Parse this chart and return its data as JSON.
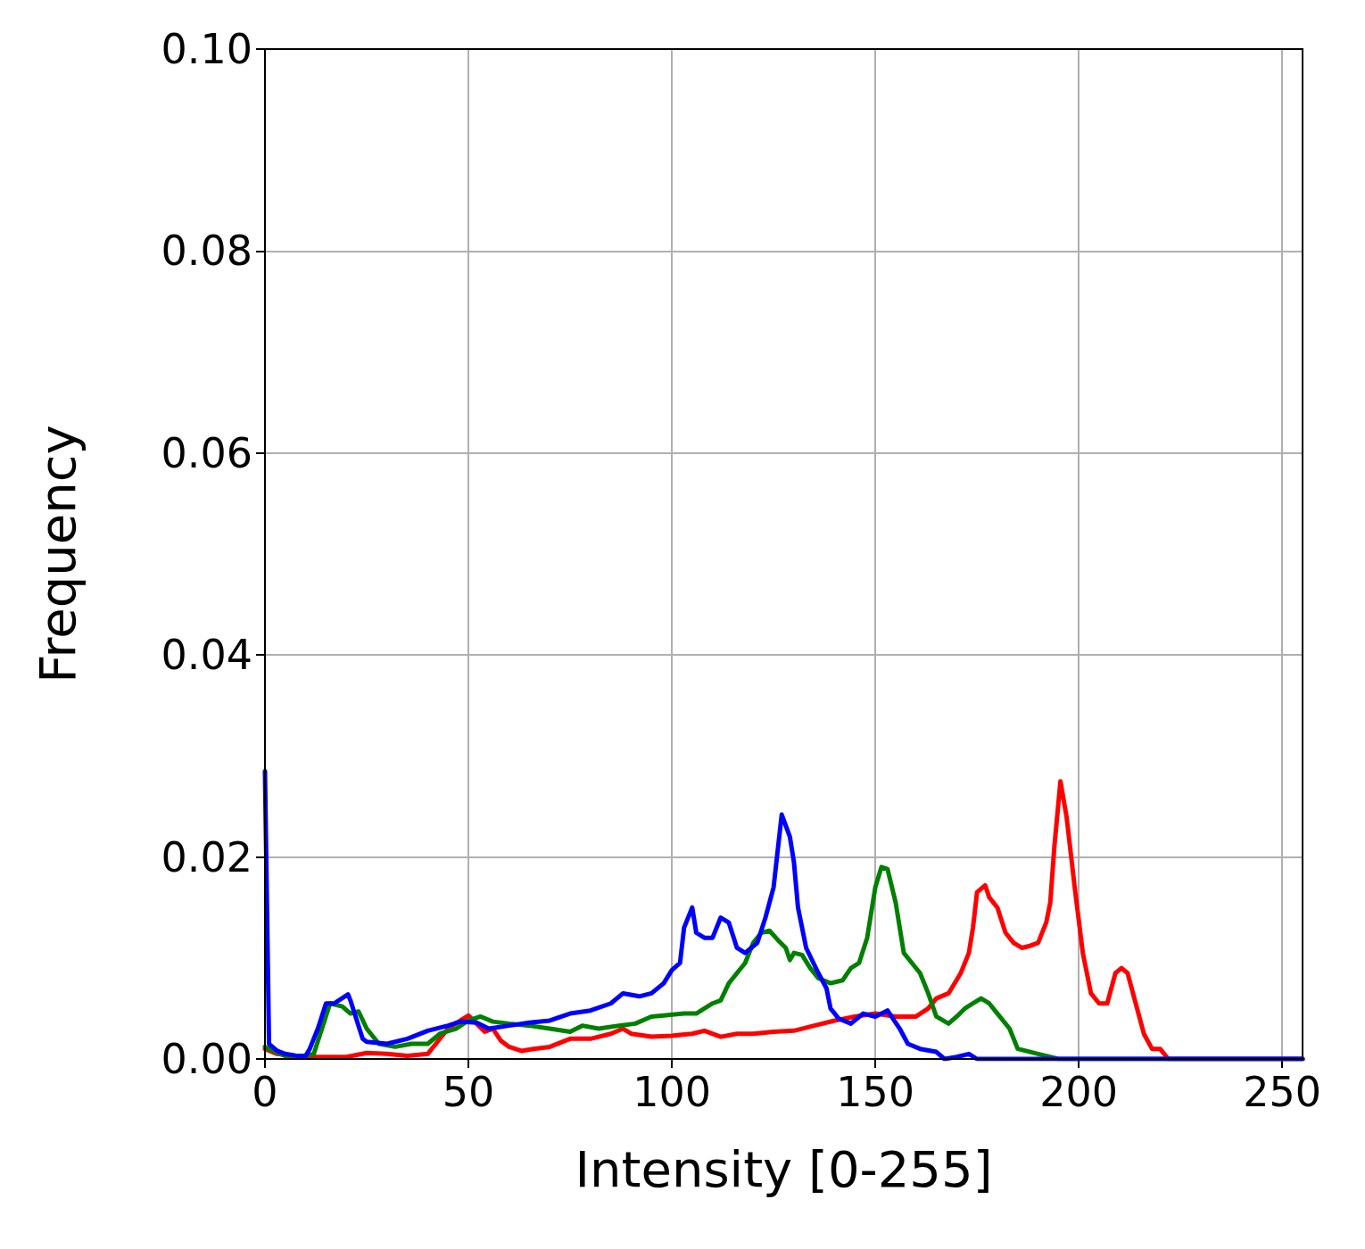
{
  "chart_data": {
    "type": "line",
    "xlabel": "Intensity [0-255]",
    "ylabel": "Frequency",
    "xlim": [
      0,
      255
    ],
    "xticks": [
      0,
      50,
      100,
      150,
      200,
      250
    ],
    "ylim": [
      0,
      0.1
    ],
    "yticks": [
      {
        "value": 0,
        "label": "0.00"
      },
      {
        "value": 0.02,
        "label": "0.02"
      },
      {
        "value": 0.04,
        "label": "0.04"
      },
      {
        "value": 0.06,
        "label": "0.06"
      },
      {
        "value": 0.08,
        "label": "0.08"
      },
      {
        "value": 0.1,
        "label": "0.10"
      }
    ],
    "grid": true,
    "marker": "none",
    "line_style": "solid",
    "series": [
      {
        "color": "#ff0000",
        "x": [
          0,
          3,
          10,
          20,
          25,
          30,
          35,
          40,
          42,
          45,
          48,
          50,
          52,
          54,
          56,
          58,
          60,
          63,
          66,
          70,
          75,
          80,
          85,
          88,
          90,
          95,
          100,
          105,
          108,
          112,
          116,
          120,
          125,
          130,
          135,
          140,
          145,
          150,
          155,
          160,
          163,
          165,
          168,
          171,
          173,
          174,
          175,
          177,
          178,
          180,
          182,
          184,
          186,
          188,
          190,
          192,
          193,
          194,
          195.5,
          197,
          199,
          201,
          203,
          205,
          207,
          209,
          210.5,
          212,
          214,
          216,
          218,
          220,
          222,
          255
        ],
        "values": [
          0.001,
          0.0005,
          0.0002,
          0.0002,
          0.0006,
          0.0005,
          0.0003,
          0.0005,
          0.0015,
          0.003,
          0.0038,
          0.0043,
          0.0035,
          0.0027,
          0.003,
          0.0018,
          0.0012,
          0.0008,
          0.001,
          0.0012,
          0.002,
          0.002,
          0.0025,
          0.003,
          0.0025,
          0.0022,
          0.0023,
          0.0025,
          0.0028,
          0.0022,
          0.0025,
          0.0025,
          0.0027,
          0.0028,
          0.0033,
          0.0038,
          0.0042,
          0.0045,
          0.0042,
          0.0042,
          0.005,
          0.006,
          0.0065,
          0.0085,
          0.0105,
          0.013,
          0.0165,
          0.0172,
          0.016,
          0.015,
          0.0125,
          0.0115,
          0.011,
          0.0112,
          0.0115,
          0.0135,
          0.0155,
          0.021,
          0.0275,
          0.024,
          0.017,
          0.0105,
          0.0065,
          0.0055,
          0.0055,
          0.0085,
          0.009,
          0.0085,
          0.0055,
          0.0025,
          0.001,
          0.001,
          0,
          0
        ]
      },
      {
        "color": "#008000",
        "x": [
          0,
          2,
          5,
          8,
          12,
          14,
          16,
          19,
          21,
          23,
          25,
          28,
          32,
          36,
          40,
          43,
          47,
          50,
          53,
          56,
          60,
          65,
          70,
          75,
          78,
          82,
          87,
          91,
          95,
          98,
          103,
          106,
          108,
          110,
          112,
          114,
          116,
          118,
          120,
          122,
          124,
          126,
          128,
          129,
          130,
          132,
          134,
          136,
          139,
          142,
          144,
          146,
          148,
          150,
          151.5,
          153,
          155,
          157,
          159,
          161,
          163,
          165,
          168,
          170,
          172,
          174,
          176,
          178,
          180,
          183,
          185,
          187,
          190,
          193,
          195,
          255
        ],
        "values": [
          0.0012,
          0.0008,
          0.0003,
          0.0002,
          0.0005,
          0.003,
          0.0055,
          0.0052,
          0.0045,
          0.0047,
          0.003,
          0.0015,
          0.0012,
          0.0015,
          0.0015,
          0.0025,
          0.003,
          0.0038,
          0.0042,
          0.0037,
          0.0035,
          0.0033,
          0.003,
          0.0027,
          0.0033,
          0.003,
          0.0033,
          0.0035,
          0.0042,
          0.0043,
          0.0045,
          0.0045,
          0.005,
          0.0055,
          0.0058,
          0.0075,
          0.0085,
          0.0095,
          0.0115,
          0.0125,
          0.0127,
          0.0118,
          0.011,
          0.0098,
          0.0105,
          0.0103,
          0.009,
          0.008,
          0.0075,
          0.0078,
          0.009,
          0.0095,
          0.012,
          0.017,
          0.019,
          0.0188,
          0.0155,
          0.0105,
          0.0095,
          0.0085,
          0.0065,
          0.0042,
          0.0035,
          0.0042,
          0.005,
          0.0055,
          0.006,
          0.0055,
          0.0045,
          0.003,
          0.001,
          0.0008,
          0.0005,
          0.0002,
          0,
          0
        ]
      },
      {
        "color": "#0000ff",
        "x": [
          0,
          1,
          3,
          5,
          8,
          10,
          11,
          13,
          15,
          17,
          20.4,
          21,
          24,
          25,
          30,
          35,
          40,
          45,
          48,
          52,
          55,
          60,
          65,
          70,
          75,
          80,
          85,
          88,
          92,
          95,
          98,
          100,
          102,
          103,
          105,
          106,
          108,
          110,
          112,
          114,
          116,
          118,
          121,
          123,
          125,
          127,
          129,
          130,
          131,
          133,
          136,
          138,
          139,
          141,
          144,
          147,
          150,
          153,
          156,
          158,
          161,
          165,
          167,
          170,
          173,
          175,
          255
        ],
        "values": [
          0.0285,
          0.0015,
          0.0008,
          0.0005,
          0.0003,
          0.0003,
          0.001,
          0.003,
          0.0055,
          0.0055,
          0.0064,
          0.0058,
          0.002,
          0.0017,
          0.0015,
          0.002,
          0.0028,
          0.0033,
          0.0037,
          0.0036,
          0.003,
          0.0033,
          0.0036,
          0.0038,
          0.0045,
          0.0048,
          0.0055,
          0.0065,
          0.0062,
          0.0065,
          0.0075,
          0.0088,
          0.0095,
          0.013,
          0.015,
          0.0125,
          0.012,
          0.012,
          0.014,
          0.0135,
          0.011,
          0.0105,
          0.0115,
          0.014,
          0.017,
          0.0242,
          0.022,
          0.0195,
          0.015,
          0.011,
          0.0085,
          0.007,
          0.005,
          0.004,
          0.0035,
          0.0045,
          0.0042,
          0.0048,
          0.003,
          0.0015,
          0.001,
          0.0007,
          0,
          0.0002,
          0.0005,
          0,
          0
        ]
      }
    ]
  }
}
